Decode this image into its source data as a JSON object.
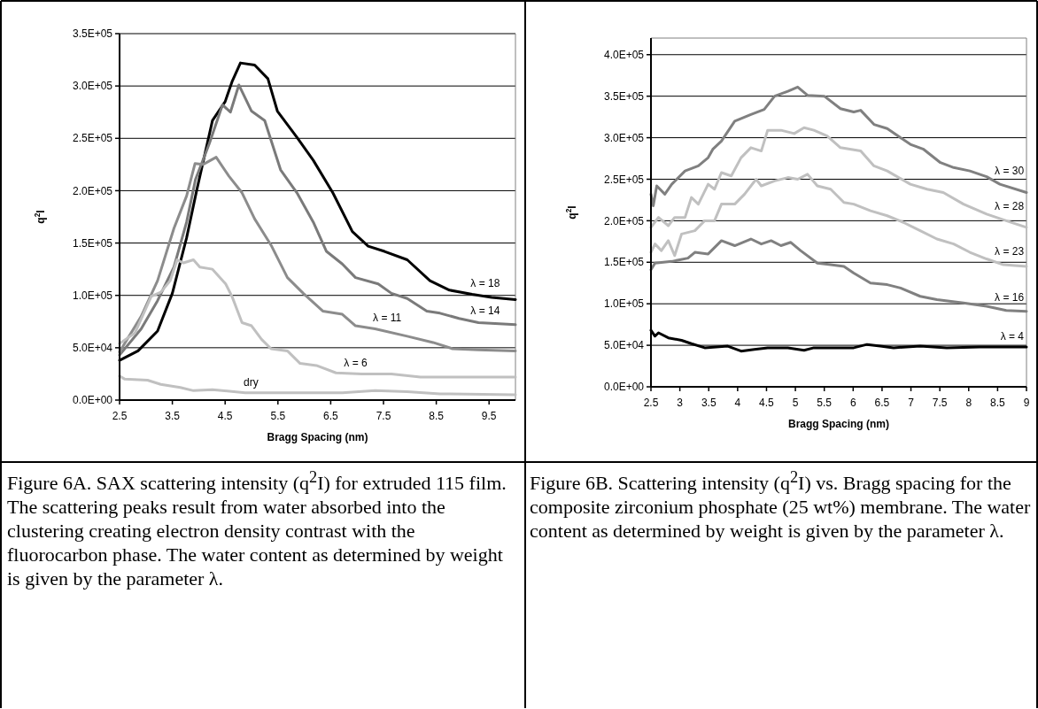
{
  "chart_data": [
    {
      "type": "line",
      "xlabel": "Bragg Spacing (nm)",
      "ylabel": "q$^{2}$I",
      "xlim": [
        2.5,
        10
      ],
      "xticks": [
        2.5,
        3.5,
        4.5,
        5.5,
        6.5,
        7.5,
        8.5,
        9.5
      ],
      "ylim": [
        0,
        350000
      ],
      "yticks": [
        {
          "value": 0,
          "label": "0.0E+00"
        },
        {
          "value": 50000,
          "label": "5.0E+04"
        },
        {
          "value": 100000,
          "label": "1.0E+05"
        },
        {
          "value": 150000,
          "label": "1.5E+05"
        },
        {
          "value": 200000,
          "label": "2.0E+05"
        },
        {
          "value": 250000,
          "label": "2.5E+05"
        },
        {
          "value": 300000,
          "label": "3.0E+05"
        },
        {
          "value": 350000,
          "label": "3.5E+05"
        }
      ],
      "grid": "y",
      "series": [
        {
          "name": "λ = 18",
          "color": "#000000",
          "x": [
            2.5,
            2.85,
            3.22,
            3.5,
            3.77,
            3.96,
            4.26,
            4.5,
            4.63,
            4.79,
            5.06,
            5.31,
            5.49,
            5.86,
            6.17,
            6.54,
            6.91,
            7.21,
            7.52,
            7.95,
            8.38,
            8.75,
            9.18,
            9.55,
            10
          ],
          "values": [
            38000,
            47000,
            66000,
            102000,
            155000,
            200000,
            267000,
            285000,
            304000,
            322000,
            320000,
            307000,
            276000,
            251000,
            229000,
            198000,
            161000,
            147000,
            142000,
            134000,
            114000,
            105000,
            101000,
            98000,
            96000
          ]
        },
        {
          "name": "λ = 14",
          "color": "#7a7a7a",
          "x": [
            2.5,
            2.91,
            3.22,
            3.53,
            3.77,
            3.94,
            4.2,
            4.45,
            4.6,
            4.76,
            5.0,
            5.25,
            5.55,
            5.86,
            6.17,
            6.42,
            6.72,
            6.97,
            7.4,
            7.65,
            7.95,
            8.32,
            8.57,
            8.93,
            9.3,
            10
          ],
          "values": [
            43000,
            68000,
            95000,
            127000,
            170000,
            211000,
            245000,
            282000,
            275000,
            301000,
            276000,
            267000,
            220000,
            198000,
            170000,
            142000,
            130000,
            117000,
            111000,
            102000,
            97000,
            85000,
            83000,
            78000,
            74000,
            72000
          ]
        },
        {
          "name": "λ = 11",
          "color": "#8c8c8c",
          "x": [
            2.5,
            2.91,
            3.22,
            3.53,
            3.77,
            3.93,
            4.08,
            4.33,
            4.57,
            4.82,
            5.06,
            5.37,
            5.68,
            5.98,
            6.35,
            6.72,
            6.97,
            7.34,
            7.95,
            8.44,
            8.81,
            9.3,
            10
          ],
          "values": [
            46000,
            80000,
            114000,
            164000,
            195000,
            226000,
            225000,
            232000,
            214000,
            198000,
            173000,
            148000,
            117000,
            102000,
            85000,
            82000,
            71000,
            68000,
            61000,
            55000,
            49000,
            48000,
            47000
          ]
        },
        {
          "name": "λ = 6",
          "color": "#c0c0c0",
          "x": [
            2.5,
            2.79,
            3.1,
            3.28,
            3.46,
            3.59,
            3.71,
            3.9,
            4.02,
            4.26,
            4.51,
            4.63,
            4.82,
            5.0,
            5.19,
            5.37,
            5.68,
            5.92,
            6.23,
            6.6,
            7.09,
            7.65,
            8.2,
            9.18,
            10
          ],
          "values": [
            54000,
            64000,
            99000,
            103000,
            114000,
            134000,
            131000,
            134000,
            127000,
            125000,
            111000,
            99000,
            74000,
            71000,
            58000,
            49000,
            47000,
            35000,
            33000,
            26000,
            25000,
            25000,
            22000,
            22000,
            22000
          ]
        },
        {
          "name": "dry",
          "color": "#c0c0c0",
          "x": [
            2.5,
            2.6,
            3.03,
            3.28,
            3.65,
            3.9,
            4.26,
            4.88,
            5.49,
            6.72,
            7.34,
            7.95,
            8.57,
            10
          ],
          "values": [
            23000,
            20000,
            19000,
            15000,
            12000,
            9000,
            10000,
            7000,
            7000,
            7000,
            9000,
            8000,
            6000,
            5000
          ]
        }
      ],
      "annotations": [
        "Figure 6A. SAX scattering intensity (q$^{2}$I) for extruded 115 film.  The scattering peaks result from water absorbed into the clustering creating electron density contrast with the fluorocarbon phase.  The water content as determined by weight is given by the parameter λ."
      ]
    },
    {
      "type": "line",
      "xlabel": "Bragg Spacing (nm)",
      "ylabel": "q$^{2}$I",
      "xlim": [
        2.5,
        9
      ],
      "xticks": [
        2.5,
        3,
        3.5,
        4,
        4.5,
        5,
        5.5,
        6,
        6.5,
        7,
        7.5,
        8,
        8.5,
        9
      ],
      "ylim": [
        0,
        420000
      ],
      "yticks": [
        {
          "value": 0,
          "label": "0.0E+00"
        },
        {
          "value": 50000,
          "label": "5.0E+04"
        },
        {
          "value": 100000,
          "label": "1.0E+05"
        },
        {
          "value": 150000,
          "label": "1.5E+05"
        },
        {
          "value": 200000,
          "label": "2.0E+05"
        },
        {
          "value": 250000,
          "label": "2.5E+05"
        },
        {
          "value": 300000,
          "label": "3.0E+05"
        },
        {
          "value": 350000,
          "label": "3.5E+05"
        },
        {
          "value": 400000,
          "label": "4.0E+05"
        }
      ],
      "grid": "y",
      "series": [
        {
          "name": "λ = 30",
          "color": "#808080",
          "x": [
            2.5,
            2.54,
            2.6,
            2.74,
            2.86,
            3.09,
            3.32,
            3.49,
            3.57,
            3.72,
            3.95,
            4.23,
            4.46,
            4.64,
            4.87,
            5.04,
            5.21,
            5.5,
            5.78,
            6.01,
            6.13,
            6.36,
            6.59,
            6.99,
            7.22,
            7.51,
            7.74,
            8.02,
            8.31,
            8.54,
            9
          ],
          "values": [
            232000,
            218000,
            242000,
            232000,
            244000,
            260000,
            266000,
            276000,
            286000,
            296000,
            320000,
            328000,
            334000,
            350000,
            356000,
            361000,
            351000,
            350000,
            335000,
            331000,
            333000,
            316000,
            311000,
            292000,
            286000,
            270000,
            264000,
            260000,
            253000,
            244000,
            234000
          ]
        },
        {
          "name": "λ = 28",
          "color": "#c0c0c0",
          "x": [
            2.5,
            2.63,
            2.8,
            2.91,
            3.09,
            3.2,
            3.32,
            3.49,
            3.6,
            3.72,
            3.89,
            4.06,
            4.23,
            4.41,
            4.52,
            4.75,
            4.98,
            5.15,
            5.32,
            5.55,
            5.78,
            6.13,
            6.36,
            6.59,
            6.99,
            7.28,
            7.56,
            7.91,
            8.31,
            8.65,
            9
          ],
          "values": [
            192000,
            204000,
            194000,
            204000,
            204000,
            228000,
            220000,
            244000,
            238000,
            258000,
            254000,
            276000,
            288000,
            284000,
            309000,
            309000,
            305000,
            312000,
            309000,
            302000,
            288000,
            284000,
            266000,
            260000,
            244000,
            238000,
            234000,
            220000,
            208000,
            200000,
            192000
          ]
        },
        {
          "name": "λ = 23",
          "color": "#c0c0c0",
          "x": [
            2.5,
            2.57,
            2.68,
            2.8,
            2.91,
            3.03,
            3.26,
            3.43,
            3.6,
            3.72,
            3.95,
            4.12,
            4.32,
            4.41,
            4.64,
            4.87,
            5.04,
            5.21,
            5.38,
            5.61,
            5.84,
            6.01,
            6.3,
            6.59,
            6.87,
            7.16,
            7.45,
            7.74,
            8.02,
            8.31,
            8.6,
            9
          ],
          "values": [
            162000,
            172000,
            164000,
            176000,
            158000,
            184000,
            188000,
            200000,
            200000,
            220000,
            220000,
            232000,
            250000,
            242000,
            248000,
            252000,
            250000,
            256000,
            242000,
            238000,
            222000,
            220000,
            212000,
            206000,
            198000,
            188000,
            178000,
            172000,
            162000,
            154000,
            147000,
            145000
          ]
        },
        {
          "name": "λ = 16",
          "color": "#808080",
          "x": [
            2.5,
            2.57,
            2.86,
            3.14,
            3.26,
            3.49,
            3.72,
            3.95,
            4.23,
            4.41,
            4.58,
            4.75,
            4.92,
            5.09,
            5.38,
            5.61,
            5.84,
            6.01,
            6.3,
            6.59,
            6.82,
            7.16,
            7.45,
            7.91,
            8.31,
            8.65,
            9
          ],
          "values": [
            141000,
            149000,
            151000,
            155000,
            162000,
            160000,
            176000,
            170000,
            178000,
            172000,
            176000,
            170000,
            174000,
            164000,
            149000,
            147000,
            145000,
            137000,
            125000,
            123000,
            119000,
            109000,
            105000,
            101000,
            97000,
            92000,
            91000
          ]
        },
        {
          "name": "λ = 4",
          "color": "#000000",
          "x": [
            2.5,
            2.57,
            2.63,
            2.8,
            3.03,
            3.2,
            3.43,
            3.83,
            4.06,
            4.29,
            4.52,
            4.87,
            5.15,
            5.32,
            6.01,
            6.24,
            6.47,
            6.7,
            7.16,
            7.62,
            8.19,
            9
          ],
          "values": [
            68000,
            61000,
            65000,
            59000,
            56000,
            52000,
            47000,
            49000,
            43000,
            45000,
            47000,
            47000,
            44000,
            47000,
            47000,
            51000,
            49000,
            47000,
            49000,
            47000,
            48000,
            48000
          ]
        }
      ],
      "annotations": [
        "Figure 6B. Scattering intensity (q$^{2}$I) vs. Bragg spacing for the composite zirconium phosphate (25 wt%) membrane.  The water content as determined by weight is given by the parameter λ."
      ]
    }
  ]
}
